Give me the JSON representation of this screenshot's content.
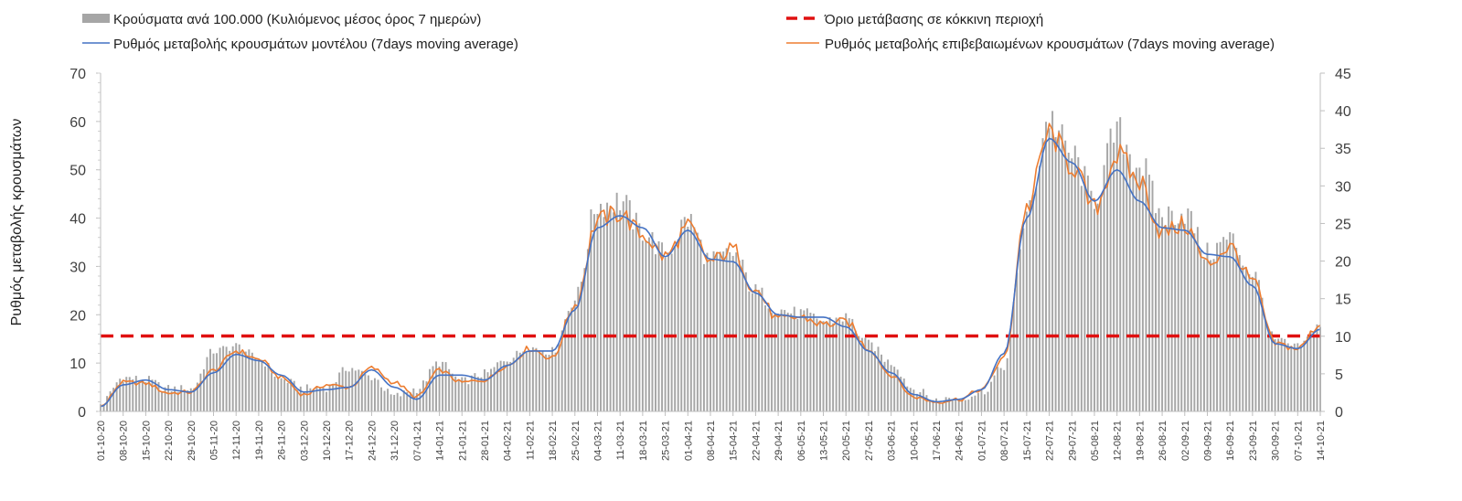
{
  "chart_data": {
    "type": "bar+line",
    "title": "",
    "ylabel": "Ρυθμός μεταβολής κρουσμάτων",
    "xlabel": "",
    "ylim_left": [
      0,
      70
    ],
    "ylim_right": [
      0,
      45
    ],
    "yticks_left": [
      "0",
      "10",
      "20",
      "30",
      "40",
      "50",
      "60",
      "70"
    ],
    "yticks_right": [
      "0",
      "5",
      "10",
      "15",
      "20",
      "25",
      "30",
      "35",
      "40",
      "45"
    ],
    "x_tick_labels": [
      "01-10-20",
      "08-10-20",
      "15-10-20",
      "22-10-20",
      "29-10-20",
      "05-11-20",
      "12-11-20",
      "19-11-20",
      "26-11-20",
      "03-12-20",
      "10-12-20",
      "17-12-20",
      "24-12-20",
      "31-12-20",
      "07-01-21",
      "14-01-21",
      "21-01-21",
      "28-01-21",
      "04-02-21",
      "11-02-21",
      "18-02-21",
      "25-02-21",
      "04-03-21",
      "11-03-21",
      "18-03-21",
      "25-03-21",
      "01-04-21",
      "08-04-21",
      "15-04-21",
      "22-04-21",
      "29-04-21",
      "06-05-21",
      "13-05-21",
      "20-05-21",
      "27-05-21",
      "03-06-21",
      "10-06-21",
      "17-06-21",
      "24-06-21",
      "01-07-21",
      "08-07-21",
      "15-07-21",
      "22-07-21",
      "29-07-21",
      "05-08-21",
      "12-08-21",
      "19-08-21",
      "26-08-21",
      "02-09-21",
      "09-09-21",
      "16-09-21",
      "23-09-21",
      "30-09-21",
      "07-10-21",
      "14-10-21"
    ],
    "threshold": {
      "name": "Όριο μετάβασης σε κόκκινη περιοχή",
      "value_left_axis": 15.6,
      "color": "#e01010"
    },
    "series": [
      {
        "name": "Κρούσματα ανά 100.000 (Κυλιόμενος μέσος όρος 7 ημερών)",
        "type": "bar",
        "axis": "right",
        "color": "#a6a6a6",
        "weekly_values": [
          1.0,
          4.5,
          4.2,
          3.0,
          3.0,
          8.0,
          8.7,
          7.0,
          4.3,
          3.0,
          3.2,
          5.8,
          4.6,
          2.0,
          3.0,
          6.5,
          4.0,
          5.0,
          7.0,
          8.5,
          8.0,
          15.0,
          27.5,
          28.0,
          24.0,
          21.0,
          25.5,
          20.0,
          21.0,
          16.0,
          13.5,
          13.0,
          12.0,
          12.5,
          9.0,
          6.5,
          3.0,
          1.5,
          1.8,
          2.5,
          6.0,
          26.0,
          39.0,
          34.0,
          28.5,
          37.0,
          33.0,
          26.0,
          26.5,
          21.0,
          23.0,
          18.5,
          9.5,
          8.5,
          11.5
        ]
      },
      {
        "name": "Ρυθμός μεταβολής κρουσμάτων μοντέλου (7days moving average)",
        "type": "line",
        "axis": "left",
        "color": "#4472c4",
        "weekly_values": [
          1.0,
          5.5,
          6.5,
          4.5,
          4.0,
          8.0,
          11.8,
          10.5,
          7.5,
          4.0,
          4.5,
          5.0,
          8.6,
          5.0,
          2.5,
          7.5,
          7.5,
          6.5,
          9.5,
          12.5,
          12.5,
          21.0,
          38.0,
          40.5,
          38.0,
          32.0,
          37.5,
          31.5,
          31.0,
          24.5,
          20.0,
          19.5,
          19.5,
          17.5,
          12.5,
          8.0,
          3.5,
          2.0,
          2.5,
          4.5,
          12.0,
          40.0,
          56.5,
          51.5,
          43.5,
          50.0,
          43.5,
          38.0,
          37.5,
          32.5,
          32.0,
          26.0,
          14.0,
          13.0,
          17.0
        ]
      },
      {
        "name": "Ρυθμός μεταβολής επιβεβαιωμένων κρουσμάτων (7days moving average)",
        "type": "line",
        "axis": "left",
        "color": "#ed7d31",
        "weekly_values": [
          1.0,
          6.0,
          5.8,
          3.8,
          4.0,
          8.5,
          12.5,
          10.8,
          7.0,
          3.5,
          5.5,
          5.0,
          9.0,
          6.0,
          3.0,
          8.5,
          6.0,
          6.5,
          9.5,
          13.0,
          11.0,
          22.0,
          39.5,
          41.0,
          36.5,
          32.0,
          38.0,
          31.0,
          33.5,
          25.0,
          19.0,
          19.5,
          18.0,
          18.5,
          13.0,
          7.5,
          3.0,
          2.0,
          2.5,
          4.5,
          11.0,
          42.0,
          57.5,
          51.0,
          42.0,
          53.0,
          47.5,
          37.0,
          38.5,
          30.5,
          34.0,
          27.0,
          14.0,
          13.0,
          18.0
        ]
      }
    ],
    "legend_position": "top"
  }
}
